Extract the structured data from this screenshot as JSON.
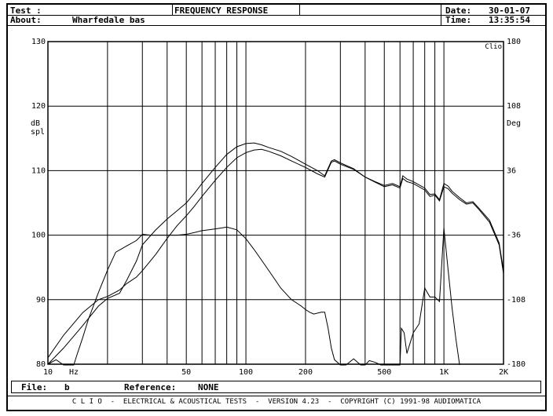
{
  "header": {
    "test_label": "Test :",
    "about_label": "About:",
    "about_value": "Wharfedale bas",
    "title": "FREQUENCY RESPONSE",
    "date_label": "Date:",
    "date_value": "30-01-07",
    "time_label": "Time:",
    "time_value": "13:35:54"
  },
  "footer": {
    "file_label": "File:",
    "file_value": "b",
    "reference_label": "Reference:",
    "reference_value": "NONE",
    "credits": "C L I O  -  ELECTRICAL & ACOUSTICAL TESTS  -  VERSION 4.23  -  COPYRIGHT (C) 1991-98 AUDIOMATICA"
  },
  "chart_data": {
    "type": "line",
    "title": "FREQUENCY RESPONSE",
    "brand_label": "Clio",
    "xscale": "log",
    "xlim": [
      10,
      2000
    ],
    "x_ticks": [
      {
        "value": 10,
        "label": "10"
      },
      {
        "value": 50,
        "label": "50"
      },
      {
        "value": 100,
        "label": "100"
      },
      {
        "value": 200,
        "label": "200"
      },
      {
        "value": 500,
        "label": "500"
      },
      {
        "value": 1000,
        "label": "1K"
      },
      {
        "value": 2000,
        "label": "2K"
      }
    ],
    "x_unit_label": "Hz",
    "ylim": [
      80,
      130
    ],
    "y_ticks": [
      80,
      90,
      100,
      110,
      120,
      130
    ],
    "ylabel": [
      "dB",
      "spl"
    ],
    "y2lim": [
      -180,
      180
    ],
    "y2_ticks": [
      -180,
      -108,
      -36,
      36,
      108,
      180
    ],
    "y2label": "Deg",
    "grid": true,
    "series": [
      {
        "axis": "left",
        "x": [
          10,
          12,
          15,
          18,
          20,
          23,
          25,
          28,
          30,
          35,
          40,
          45,
          50,
          55,
          60,
          70,
          80,
          90,
          100,
          110,
          120,
          130,
          150,
          170,
          200,
          230,
          250,
          270,
          280,
          300,
          350,
          400,
          450,
          500,
          550,
          600,
          620,
          650,
          700,
          800,
          850,
          900,
          950,
          1000,
          1050,
          1100,
          1200,
          1300,
          1400,
          1500,
          1700,
          1900,
          2000
        ],
        "values": [
          81,
          84.5,
          88,
          90,
          90.5,
          91.5,
          92.5,
          93.5,
          94.5,
          97,
          99.5,
          101.5,
          103,
          104.5,
          106,
          108.5,
          110.5,
          112,
          112.8,
          113.2,
          113.3,
          113,
          112.3,
          111.5,
          110.5,
          109.5,
          109,
          111.3,
          111.5,
          111,
          110.2,
          109,
          108.2,
          107.5,
          107.8,
          107.3,
          108.8,
          108.3,
          108,
          107,
          106,
          106.2,
          105.3,
          107.5,
          107.2,
          106.5,
          105.5,
          104.8,
          105,
          104,
          102,
          98.5,
          94
        ]
      },
      {
        "axis": "left",
        "x": [
          10,
          12,
          15,
          18,
          20,
          23,
          25,
          28,
          30,
          35,
          40,
          45,
          50,
          55,
          60,
          70,
          80,
          90,
          100,
          110,
          120,
          130,
          150,
          170,
          200,
          230,
          250,
          270,
          280,
          300,
          350,
          400,
          450,
          500,
          550,
          600,
          620,
          650,
          700,
          800,
          850,
          900,
          950,
          1000,
          1050,
          1100,
          1200,
          1300,
          1400,
          1500,
          1700,
          1900,
          2000
        ],
        "values": [
          80,
          82.5,
          86,
          89,
          90.2,
          91,
          93,
          96,
          98.5,
          100.8,
          102.5,
          103.8,
          105,
          106.5,
          108,
          110.5,
          112.5,
          113.7,
          114.2,
          114.3,
          114,
          113.6,
          113,
          112.2,
          111,
          110,
          109.2,
          111.5,
          111.7,
          111.2,
          110.3,
          109,
          108.3,
          107.7,
          108,
          107.5,
          109.2,
          108.7,
          108.3,
          107.3,
          106.3,
          106.4,
          105.5,
          108,
          107.6,
          106.8,
          105.8,
          105,
          105.2,
          104.2,
          102.3,
          98.8,
          94.5
        ]
      },
      {
        "axis": "right",
        "x": [
          10,
          11,
          12,
          13,
          13.5,
          14,
          15,
          16,
          18,
          20,
          22,
          25,
          28,
          30,
          33,
          35,
          40,
          45,
          50,
          55,
          60,
          65,
          70,
          75,
          80,
          90,
          100,
          110,
          130,
          150,
          170,
          190,
          200,
          210,
          220,
          240,
          250,
          260,
          270,
          280,
          300,
          320,
          350,
          380,
          400,
          420,
          450,
          480,
          500,
          520,
          550,
          580,
          600,
          610,
          630,
          650,
          700,
          750,
          800,
          850,
          900,
          950,
          1000,
          1050,
          1100,
          1150,
          1200
        ],
        "values": [
          -180,
          -175,
          -183,
          -186,
          -182,
          -170,
          -150,
          -130,
          -100,
          -75,
          -55,
          -48,
          -42,
          -35,
          -36,
          -36,
          -36,
          -36,
          -35,
          -33,
          -31,
          -30,
          -29,
          -28,
          -27,
          -30,
          -40,
          -52,
          -75,
          -95,
          -108,
          -115,
          -119,
          -122,
          -124,
          -122,
          -122,
          -140,
          -162,
          -175,
          -186,
          -188,
          -174,
          -184,
          -183,
          -176,
          -178,
          -185,
          -188,
          -186,
          -190,
          -188,
          -186,
          -140,
          -145,
          -168,
          -145,
          -135,
          -95,
          -105,
          -105,
          -110,
          -28,
          -75,
          -118,
          -152,
          -186
        ]
      }
    ]
  }
}
